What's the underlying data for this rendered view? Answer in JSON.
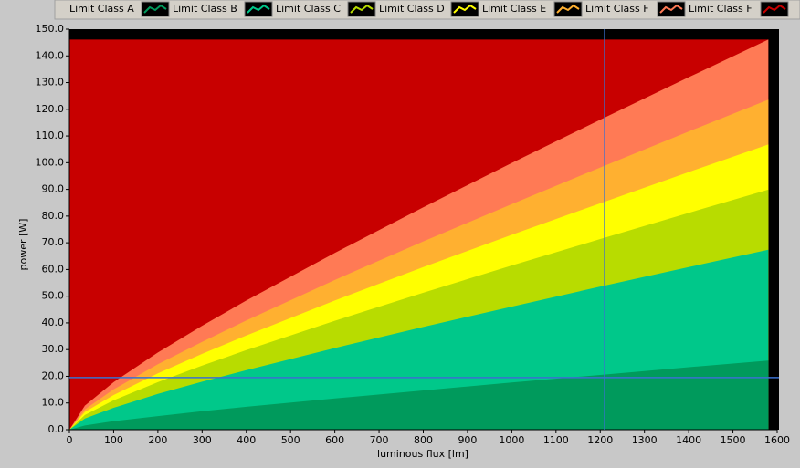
{
  "chart_data": {
    "type": "area",
    "x_label": "luminous flux [lm]",
    "y_label": "power [W]",
    "x": [
      0,
      35,
      100,
      200,
      300,
      400,
      600,
      800,
      1000,
      1200,
      1400,
      1580
    ],
    "series": [
      {
        "name": "Limit Class A",
        "color": "#009a5c",
        "values": [
          0,
          1.6,
          3.2,
          5.1,
          6.9,
          8.6,
          11.7,
          14.7,
          17.7,
          20.5,
          23.4,
          25.9
        ]
      },
      {
        "name": "Limit Class B",
        "color": "#00c88a",
        "values": [
          0,
          4.2,
          8.2,
          13.4,
          18.0,
          22.3,
          30.6,
          38.5,
          46.1,
          53.6,
          60.9,
          67.4
        ]
      },
      {
        "name": "Limit Class C",
        "color": "#b8dc00",
        "values": [
          0,
          5.5,
          11.0,
          17.8,
          24.0,
          29.8,
          40.8,
          51.3,
          61.5,
          71.4,
          81.2,
          89.9
        ]
      },
      {
        "name": "Limit Class D",
        "color": "#ffff00",
        "values": [
          0,
          6.6,
          13.0,
          21.1,
          28.4,
          35.3,
          48.4,
          60.9,
          73.0,
          84.8,
          96.5,
          106.8
        ]
      },
      {
        "name": "Limit Class E",
        "color": "#ffb030",
        "values": [
          0,
          7.6,
          15.1,
          24.5,
          32.9,
          40.9,
          56.1,
          70.5,
          84.5,
          98.2,
          111.7,
          123.6
        ]
      },
      {
        "name": "Limit Class F",
        "color": "#ff7a55",
        "values": [
          0,
          9.0,
          17.8,
          28.9,
          38.9,
          48.4,
          66.2,
          83.3,
          99.9,
          116.1,
          132.0,
          146.1
        ]
      },
      {
        "name": "Limit Class F",
        "color": "#c80000",
        "values": [
          146.1,
          146.1,
          146.1,
          146.1,
          146.1,
          146.1,
          146.1,
          146.1,
          146.1,
          146.1,
          146.1,
          146.1
        ]
      }
    ],
    "xlim": [
      0,
      1600
    ],
    "xticks": [
      0,
      100,
      200,
      300,
      400,
      500,
      600,
      700,
      800,
      900,
      1000,
      1100,
      1200,
      1300,
      1400,
      1500,
      1600
    ],
    "ylim": [
      0,
      150
    ],
    "yticks": [
      {
        "value": 0,
        "label": "0.0"
      },
      {
        "value": 10,
        "label": "10.0"
      },
      {
        "value": 20,
        "label": "20.0"
      },
      {
        "value": 30,
        "label": "30.0"
      },
      {
        "value": 40,
        "label": "40.0"
      },
      {
        "value": 50,
        "label": "50.0"
      },
      {
        "value": 60,
        "label": "60.0"
      },
      {
        "value": 70,
        "label": "70.0"
      },
      {
        "value": 80,
        "label": "80.0"
      },
      {
        "value": 90,
        "label": "90.0"
      },
      {
        "value": 100,
        "label": "100.0"
      },
      {
        "value": 110,
        "label": "110.0"
      },
      {
        "value": 120,
        "label": "120.0"
      },
      {
        "value": 130,
        "label": "130.0"
      },
      {
        "value": 140,
        "label": "140.0"
      },
      {
        "value": 150,
        "label": "150.0"
      }
    ],
    "plot_background": "#000000",
    "cursor": {
      "x": 1210,
      "y": 19.5,
      "color": "#3a70d0"
    }
  }
}
